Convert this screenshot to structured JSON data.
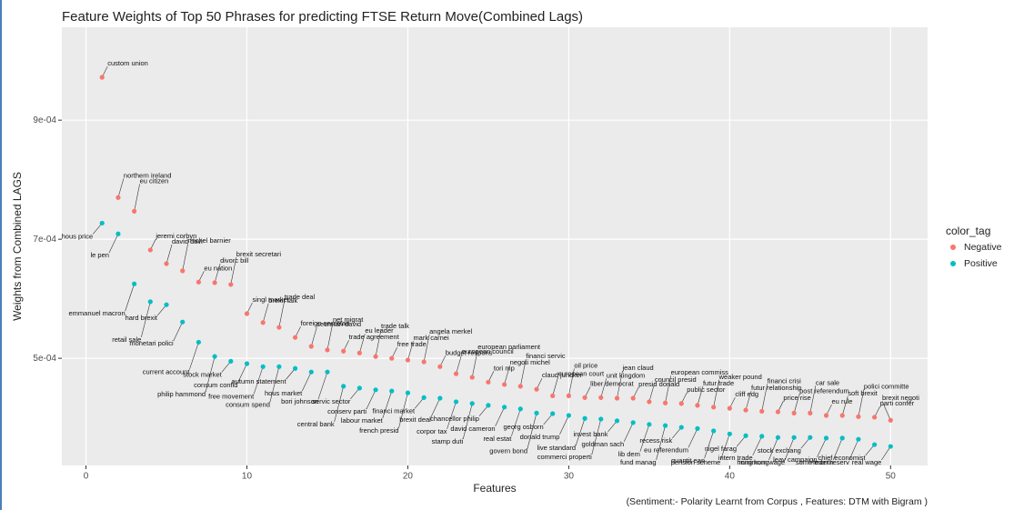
{
  "chart_data": {
    "type": "scatter",
    "title": "Feature Weights of Top 50 Phrases for predicting FTSE Return Move(Combined Lags)",
    "x_label": "Features",
    "y_label": "Weights from Combined LAGS",
    "caption": "(Sentiment:- Polarity Learnt from Corpus , Features: DTM with Bigram )",
    "legend_title": "color_tag",
    "legend_position": "right",
    "grid": true,
    "xlim": [
      -1.5,
      52.3
    ],
    "xticks": [
      0,
      10,
      20,
      30,
      40,
      50
    ],
    "ylim": [
      0.00032,
      0.001056
    ],
    "yticks": [
      {
        "value": 0.0005,
        "label": "5e-04"
      },
      {
        "value": 0.0007,
        "label": "7e-04"
      },
      {
        "value": 0.0009,
        "label": "9e-04"
      }
    ],
    "x": [
      1,
      2,
      3,
      4,
      5,
      6,
      7,
      8,
      9,
      10,
      11,
      12,
      13,
      14,
      15,
      16,
      17,
      18,
      19,
      20,
      21,
      22,
      23,
      24,
      25,
      26,
      27,
      28,
      29,
      30,
      31,
      32,
      33,
      34,
      35,
      36,
      37,
      38,
      39,
      40,
      41,
      42,
      43,
      44,
      45,
      46,
      47,
      48,
      49,
      50
    ],
    "series": [
      {
        "name": "Negative",
        "color": "#f8766d",
        "values": [
          0.000972,
          0.00077,
          0.000747,
          0.000682,
          0.000659,
          0.000647,
          0.000628,
          0.000627,
          0.000624,
          0.000575,
          0.00056,
          0.000552,
          0.000535,
          0.00052,
          0.000514,
          0.000512,
          0.000509,
          0.000503,
          0.0005,
          0.000497,
          0.000494,
          0.000486,
          0.000474,
          0.000468,
          0.00046,
          0.000456,
          0.000453,
          0.000448,
          0.000437,
          0.000437,
          0.000434,
          0.000434,
          0.000433,
          0.000433,
          0.000427,
          0.000425,
          0.000424,
          0.000421,
          0.000418,
          0.000416,
          0.000413,
          0.000411,
          0.00041,
          0.000408,
          0.000408,
          0.000404,
          0.000404,
          0.000402,
          0.000401,
          0.000396
        ],
        "labels": [
          "custom union",
          "northern ireland",
          "eu citizen",
          "jeremi corbyn",
          "david davi",
          "michel barnier",
          "eu nation",
          "divorc bill",
          "brexit secretari",
          "singl market",
          "brexit talk",
          "trade deal",
          "foreign secretari",
          "secretari david",
          "net migrat",
          "trade agreement",
          "eu leader",
          "trade talk",
          "free trade",
          "mark carnei",
          "angela merkel",
          "budget respons",
          "european council",
          "european parliament",
          "tori mp",
          "negoti michel",
          "financi servic",
          "claud juncker",
          "european court",
          "oil price",
          "liber democrat",
          "unit kingdom",
          "jean claud",
          "presid donald",
          "council presid",
          "european commiss",
          "public sector",
          "futur trade",
          "weaker pound",
          "cliff edg",
          "futur relationship",
          "financi crisi",
          "price rise",
          "post referendum",
          "car sale",
          "eu rule",
          "soft brexit",
          "polici committe",
          "parti confer",
          "brexit negoti"
        ]
      },
      {
        "name": "Positive",
        "color": "#00bfc4",
        "values": [
          0.000727,
          0.000709,
          0.000625,
          0.000595,
          0.00059,
          0.000561,
          0.000527,
          0.000503,
          0.000495,
          0.000491,
          0.000486,
          0.000486,
          0.000483,
          0.000477,
          0.000477,
          0.000453,
          0.00045,
          0.000447,
          0.000445,
          0.000442,
          0.000434,
          0.000433,
          0.000427,
          0.000424,
          0.000421,
          0.000418,
          0.000415,
          0.000408,
          0.000407,
          0.000404,
          0.000399,
          0.000398,
          0.000395,
          0.000392,
          0.000389,
          0.000387,
          0.000384,
          0.000382,
          0.000378,
          0.000373,
          0.00037,
          0.000369,
          0.000367,
          0.000367,
          0.000367,
          0.000366,
          0.000366,
          0.000364,
          0.000355,
          0.000352
        ],
        "labels": [
          "hous price",
          "le pen",
          "emmanuel macron",
          "retail sale",
          "hard brexit",
          "monetari polici",
          "current account",
          "philip hammond",
          "stock market",
          "consum confid",
          "free movement",
          "consum spend",
          "autumn statement",
          "hous market",
          "bori johnson",
          "central bank",
          "servic sector",
          "conserv parti",
          "labour market",
          "french presid",
          "financi market",
          "brexit deal",
          "corpor tax",
          "stamp duti",
          "chancellor philip",
          "david cameron",
          "real estat",
          "govern bond",
          "georg osborn",
          "donald trump",
          "live standard",
          "commerci properti",
          "invest bank",
          "goldman sach",
          "lib dem",
          "fund manag",
          "recess risk",
          "eu referendum",
          "quantit eas",
          "pension scheme",
          "nigel farag",
          "intern trade",
          "hong kong",
          "minimum wage",
          "stock exchang",
          "leav campaign",
          "some month",
          "feder reserv",
          "chief economist",
          "real wage"
        ]
      }
    ]
  }
}
